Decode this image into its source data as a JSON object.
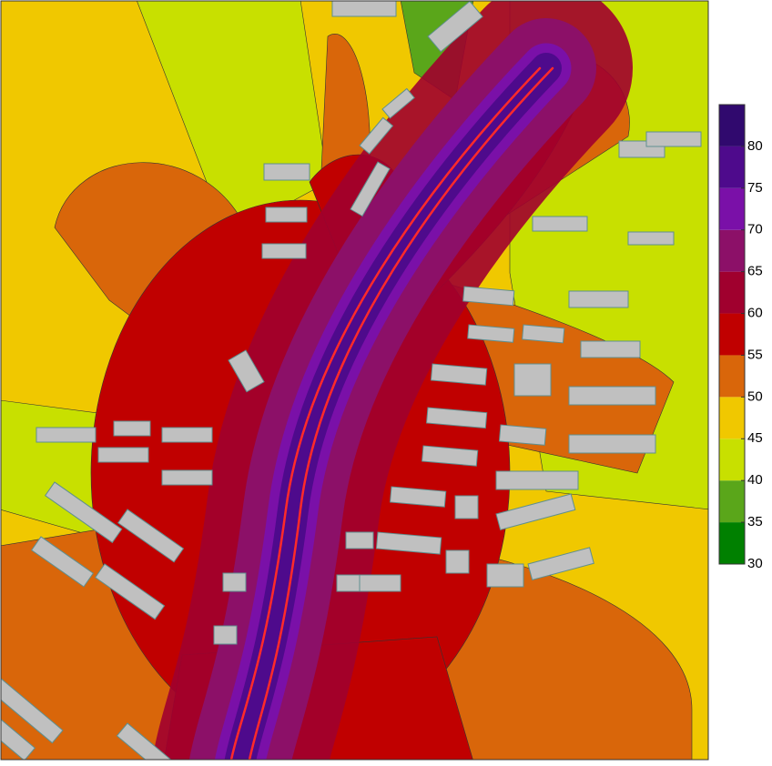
{
  "legend": {
    "range": [
      30,
      85
    ],
    "ticks": [
      30,
      35,
      40,
      45,
      50,
      55,
      60,
      65,
      70,
      75,
      80
    ],
    "colors": [
      "#008000",
      "#5aa61a",
      "#c8e000",
      "#f0c800",
      "#d9660a",
      "#c00000",
      "#a0002e",
      "#8c1068",
      "#7a10a8",
      "#4e0a8c",
      "#30096e"
    ]
  }
}
